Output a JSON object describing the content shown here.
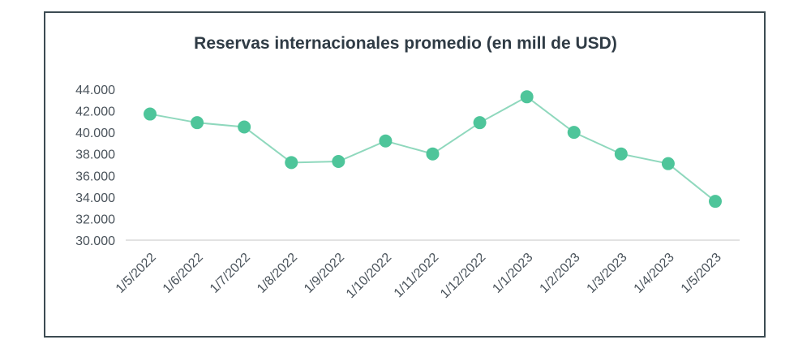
{
  "chart_data": {
    "type": "line",
    "title": "Reservas internacionales promedio (en mill de USD)",
    "xlabel": "",
    "ylabel": "",
    "categories": [
      "1/5/2022",
      "1/6/2022",
      "1/7/2022",
      "1/8/2022",
      "1/9/2022",
      "1/10/2022",
      "1/11/2022",
      "1/12/2022",
      "1/1/2023",
      "1/2/2023",
      "1/3/2023",
      "1/4/2023",
      "1/5/2023"
    ],
    "series": [
      {
        "values": [
          41700,
          40900,
          40500,
          37200,
          37300,
          39200,
          38000,
          40900,
          43300,
          40000,
          38000,
          37100,
          33600
        ]
      }
    ],
    "ylim": [
      30000,
      44000
    ],
    "yticks": [
      30000,
      32000,
      34000,
      36000,
      38000,
      40000,
      42000,
      44000
    ],
    "ytick_labels": [
      "30.000",
      "32.000",
      "34.000",
      "36.000",
      "38.000",
      "40.000",
      "42.000",
      "44.000"
    ],
    "grid": false,
    "legend": "none",
    "colors": {
      "line": "#8fd8bd",
      "marker": "#4ec59a",
      "axis": "#d9d9d9",
      "frame": "#3c4b52"
    }
  }
}
